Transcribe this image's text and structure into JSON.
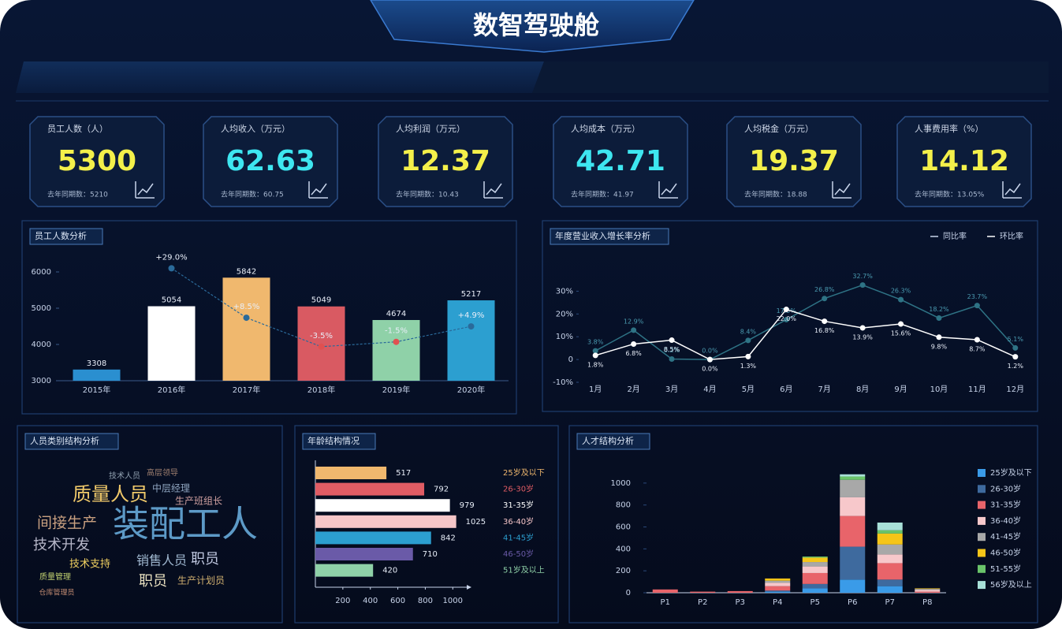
{
  "title": "数智驾驶舱",
  "kpis": [
    {
      "label": "员工人数（人）",
      "value": 5300,
      "sub": "去年同期数：5210",
      "color": "#f4f04a"
    },
    {
      "label": "人均收入（万元）",
      "value": 62.63,
      "sub": "去年同期数：60.75",
      "color": "#3ee6f0"
    },
    {
      "label": "人均利润（万元）",
      "value": 12.37,
      "sub": "去年同期数：10.43",
      "color": "#f4f04a"
    },
    {
      "label": "人均成本（万元）",
      "value": 42.71,
      "sub": "去年同期数：41.97",
      "color": "#3ee6f0"
    },
    {
      "label": "人均税金（万元）",
      "value": 19.37,
      "sub": "去年同期数：18.88",
      "color": "#f4f04a"
    },
    {
      "label": "人事费用率（%）",
      "value": 14.12,
      "sub": "去年同期数：13.05%",
      "color": "#f4f04a"
    }
  ],
  "chart_data": [
    {
      "type": "combo",
      "title": "员工人数分析",
      "categories": [
        "2015年",
        "2016年",
        "2017年",
        "2018年",
        "2019年",
        "2020年"
      ],
      "ylim": [
        3000,
        6500
      ],
      "yticks": [
        3000,
        4000,
        5000,
        6000
      ],
      "y2lim": [
        -15,
        35
      ],
      "series": [
        {
          "values": [
            3308,
            5054,
            5842,
            5049,
            4674,
            5217
          ],
          "colors": [
            "#2a8fd0",
            "#ffffff",
            "#f0b86e",
            "#d95a62",
            "#8fd1a8",
            "#2c9fd0"
          ]
        },
        {
          "axis": "y2",
          "color": "#2a6a9a",
          "negative_color": "#e05050",
          "values": [
            null,
            29.0,
            8.5,
            -3.5,
            -1.5,
            4.9
          ],
          "value_labels": [
            null,
            "+29.0%",
            "+8.5%",
            "-3.5%",
            "-1.5%",
            "+4.9%"
          ]
        }
      ]
    },
    {
      "type": "line",
      "title": "年度营业收入增长率分析",
      "categories": [
        "1月",
        "2月",
        "3月",
        "4月",
        "5月",
        "6月",
        "7月",
        "8月",
        "9月",
        "10月",
        "11月",
        "12月"
      ],
      "ylim": [
        -10,
        35
      ],
      "yticks": [
        {
          "value": -10,
          "label": "-10%"
        },
        0,
        {
          "value": 10,
          "label": "10%"
        },
        {
          "value": 20,
          "label": "20%"
        },
        {
          "value": 30,
          "label": "30%"
        }
      ],
      "series": [
        {
          "name": "同比率",
          "color": "#2e7385",
          "values": [
            3.8,
            12.9,
            0.2,
            0.0,
            8.4,
            17.5,
            26.8,
            32.7,
            26.3,
            18.2,
            23.7,
            5.1
          ],
          "value_labels": [
            "3.8%",
            "12.9%",
            "0.2%",
            "0.0%",
            "8.4%",
            "17.5%",
            "26.8%",
            "32.7%",
            "26.3%",
            "18.2%",
            "23.7%",
            "5.1%"
          ]
        },
        {
          "name": "环比率",
          "color": "#ffffff",
          "values": [
            1.8,
            6.8,
            8.5,
            0.0,
            1.3,
            22.0,
            16.8,
            13.9,
            15.6,
            9.8,
            8.7,
            1.2
          ],
          "value_labels": [
            "1.8%",
            "6.8%",
            "8.5%",
            "0.0%",
            "1.3%",
            "22.0%",
            "16.8%",
            "13.9%",
            "15.6%",
            "9.8%",
            "8.7%",
            "1.2%"
          ]
        }
      ]
    },
    {
      "type": "wordcloud",
      "title": "人员类别结构分析",
      "words": [
        "装配工人",
        "质量人员",
        "间接生产",
        "技术开发",
        "技术支持",
        "销售人员",
        "职员",
        "职员",
        "中层经理",
        "生产班组长",
        "技术人员",
        "高层领导",
        "生产计划员",
        "质量管理",
        "仓库管理员"
      ]
    },
    {
      "type": "hbar",
      "title": "年龄结构情况",
      "categories": [
        "25岁及以下",
        "26-30岁",
        "31-35岁",
        "36-40岁",
        "41-45岁",
        "46-50岁",
        "51岁及以上"
      ],
      "values": [
        517,
        792,
        979,
        1025,
        842,
        710,
        420
      ],
      "colors": [
        "#f0b86e",
        "#e05c64",
        "#ffffff",
        "#f6c6c8",
        "#2c9fd0",
        "#6a5aa8",
        "#8fd1a8"
      ],
      "xlim": [
        0,
        1050
      ],
      "xticks": [
        200,
        400,
        600,
        800,
        1000
      ]
    },
    {
      "type": "stacked",
      "title": "人才结构分析",
      "categories": [
        "P1",
        "P2",
        "P3",
        "P4",
        "P5",
        "P6",
        "P7",
        "P8"
      ],
      "ylim": [
        0,
        1150
      ],
      "yticks": [
        0,
        200,
        400,
        600,
        800,
        1000
      ],
      "series": [
        {
          "name": "25岁及以下",
          "color": "#3a9be8",
          "values": [
            0,
            0,
            0,
            10,
            40,
            120,
            60,
            0
          ]
        },
        {
          "name": "26-30岁",
          "color": "#3e6a9e",
          "values": [
            0,
            0,
            0,
            10,
            40,
            300,
            60,
            0
          ]
        },
        {
          "name": "31-35岁",
          "color": "#e8646a",
          "values": [
            30,
            10,
            15,
            40,
            100,
            280,
            150,
            10
          ]
        },
        {
          "name": "36-40岁",
          "color": "#f7c8cb",
          "values": [
            0,
            0,
            0,
            30,
            60,
            170,
            80,
            15
          ]
        },
        {
          "name": "41-45岁",
          "color": "#a8a8a8",
          "values": [
            0,
            0,
            0,
            20,
            40,
            160,
            90,
            10
          ]
        },
        {
          "name": "46-50岁",
          "color": "#f5c518",
          "values": [
            0,
            0,
            0,
            20,
            40,
            0,
            100,
            5
          ]
        },
        {
          "name": "51-55岁",
          "color": "#6ac46a",
          "values": [
            0,
            0,
            0,
            0,
            10,
            30,
            30,
            0
          ]
        },
        {
          "name": "56岁及以上",
          "color": "#a8e0d8",
          "values": [
            0,
            0,
            0,
            0,
            0,
            20,
            70,
            0
          ]
        }
      ]
    }
  ]
}
